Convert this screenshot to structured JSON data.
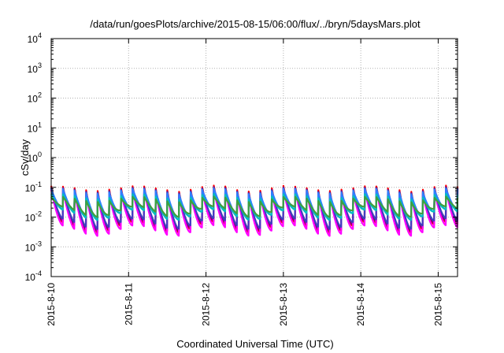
{
  "chart_data": {
    "type": "line",
    "title": "/data/run/goesPlots/archive/2015-08-15/06:00/flux/../bryn/5daysMars.plot",
    "xlabel": "Coordinated Universal Time (UTC)",
    "ylabel": "cSv/day",
    "y_scale": "log",
    "ylim": [
      0.0001,
      10000
    ],
    "y_ticks": [
      {
        "base": "10",
        "exp": "-4"
      },
      {
        "base": "10",
        "exp": "-3"
      },
      {
        "base": "10",
        "exp": "-2"
      },
      {
        "base": "10",
        "exp": "-1"
      },
      {
        "base": "10",
        "exp": "0"
      },
      {
        "base": "10",
        "exp": "1"
      },
      {
        "base": "10",
        "exp": "2"
      },
      {
        "base": "10",
        "exp": "3"
      },
      {
        "base": "10",
        "exp": "4"
      }
    ],
    "xlim": [
      "2015-08-10",
      "2015-08-15T06:00"
    ],
    "x_ticks": [
      "2015-8-10",
      "2015-8-11",
      "2015-8-12",
      "2015-8-13",
      "2015-8-14",
      "2015-8-15"
    ],
    "grid": true,
    "legend": "none",
    "series": [
      {
        "color": "#ff0000",
        "peak": 0.095,
        "trough": 0.0045
      },
      {
        "color": "#7f007f",
        "peak": 0.085,
        "trough": 0.005
      },
      {
        "color": "#ff00ff",
        "peak": 0.07,
        "trough": 0.0035
      },
      {
        "color": "#3f3fbf",
        "peak": 0.08,
        "trough": 0.006
      },
      {
        "color": "#2f7fff",
        "peak": 0.075,
        "trough": 0.012
      },
      {
        "color": "#00bfbf",
        "peak": 0.05,
        "trough": 0.012
      },
      {
        "color": "#3f9f3f",
        "peak": 0.04,
        "trough": 0.015
      }
    ]
  }
}
